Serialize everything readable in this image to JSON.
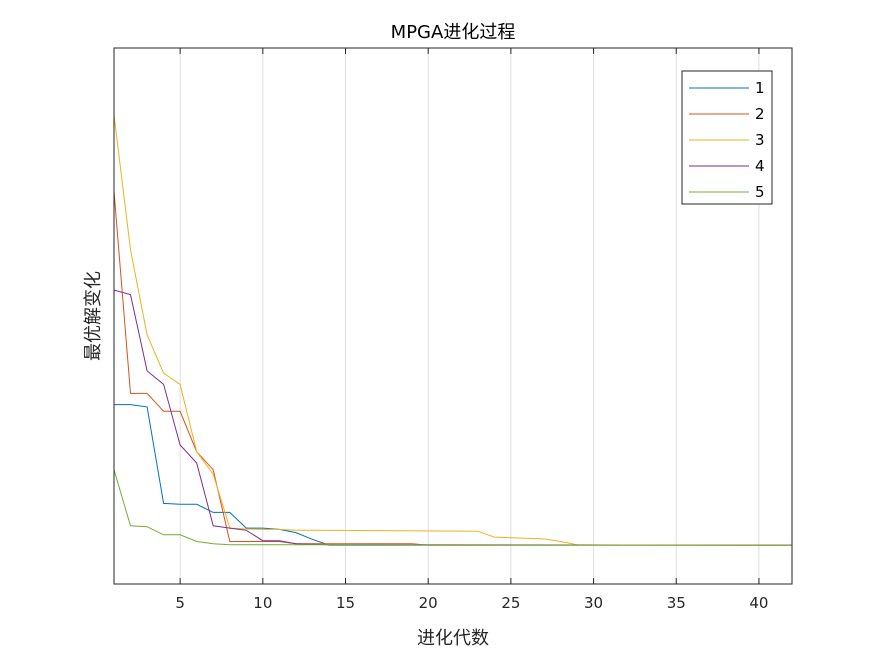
{
  "chart_data": {
    "type": "line",
    "title": "MPGA进化过程",
    "xlabel": "进化代数",
    "ylabel": "最优解变化",
    "xlim": [
      1,
      42
    ],
    "ylim": [
      0,
      100
    ],
    "x_ticks": [
      5,
      10,
      15,
      20,
      25,
      30,
      35,
      40
    ],
    "y_ticks_visible": false,
    "grid": "vertical",
    "legend_position": "top-right",
    "series": [
      {
        "name": "1",
        "color": "#0072BD",
        "points": [
          [
            1,
            35.5
          ],
          [
            2,
            35.5
          ],
          [
            3,
            35
          ],
          [
            4,
            13.5
          ],
          [
            5,
            13.3
          ],
          [
            6,
            13.3
          ],
          [
            7,
            11.5
          ],
          [
            8,
            11.5
          ],
          [
            9,
            8
          ],
          [
            10,
            8
          ],
          [
            11,
            7.7
          ],
          [
            12,
            7
          ],
          [
            13,
            5.5
          ],
          [
            14,
            4.2
          ],
          [
            15,
            4.2
          ],
          [
            16,
            4.2
          ],
          [
            42,
            4.2
          ]
        ]
      },
      {
        "name": "2",
        "color": "#D95319",
        "points": [
          [
            1,
            83
          ],
          [
            2,
            38
          ],
          [
            3,
            38
          ],
          [
            4,
            34
          ],
          [
            5,
            34
          ],
          [
            6,
            25
          ],
          [
            7,
            21
          ],
          [
            8,
            5
          ],
          [
            9,
            5
          ],
          [
            10,
            5
          ],
          [
            11,
            5
          ],
          [
            12,
            4.5
          ],
          [
            13,
            4.5
          ],
          [
            19,
            4.5
          ],
          [
            20,
            4.2
          ],
          [
            42,
            4.2
          ]
        ]
      },
      {
        "name": "3",
        "color": "#EDB120",
        "points": [
          [
            1,
            100
          ],
          [
            2,
            70
          ],
          [
            3,
            51
          ],
          [
            4,
            42.5
          ],
          [
            5,
            40
          ],
          [
            6,
            25
          ],
          [
            7,
            20
          ],
          [
            8,
            8
          ],
          [
            9,
            7.8
          ],
          [
            10,
            7.7
          ],
          [
            11,
            7.7
          ],
          [
            12,
            7.5
          ],
          [
            13,
            7.5
          ],
          [
            23,
            7.3
          ],
          [
            24,
            6
          ],
          [
            27,
            5.6
          ],
          [
            28,
            5
          ],
          [
            29,
            4.3
          ],
          [
            31,
            4.2
          ],
          [
            42,
            4.2
          ]
        ]
      },
      {
        "name": "4",
        "color": "#7E2F8E",
        "points": [
          [
            1,
            61
          ],
          [
            2,
            60
          ],
          [
            3,
            43
          ],
          [
            4,
            40
          ],
          [
            5,
            26.5
          ],
          [
            6,
            22.5
          ],
          [
            7,
            8.5
          ],
          [
            8,
            8
          ],
          [
            9,
            7.5
          ],
          [
            10,
            5.2
          ],
          [
            11,
            5.2
          ],
          [
            12,
            4.5
          ],
          [
            14,
            4.3
          ],
          [
            42,
            4.2
          ]
        ]
      },
      {
        "name": "5",
        "color": "#77AC30",
        "points": [
          [
            1,
            21
          ],
          [
            2,
            8.5
          ],
          [
            3,
            8.3
          ],
          [
            4,
            6.5
          ],
          [
            5,
            6.5
          ],
          [
            6,
            5
          ],
          [
            7,
            4.5
          ],
          [
            8,
            4.3
          ],
          [
            42,
            4.2
          ]
        ]
      }
    ]
  }
}
